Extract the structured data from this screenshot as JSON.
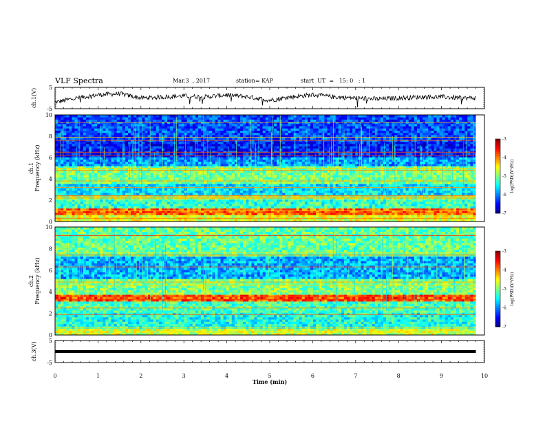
{
  "header": {
    "title": "VLF Spectra",
    "date": "Mar.3  , 2017",
    "station": "station= KAP",
    "start": "start  UT  =   15: 0   : 1"
  },
  "chart_data": [
    {
      "type": "line",
      "panel": "ch1-waveform",
      "ylabel": "ch.1(V)",
      "ylim": [
        -5,
        5
      ],
      "yticks": [
        "5",
        "-5"
      ],
      "xlim": [
        0,
        10
      ],
      "x": [
        0,
        0.5,
        1,
        1.5,
        2,
        2.5,
        3,
        3.5,
        4,
        4.5,
        5,
        5.5,
        6,
        6.5,
        7,
        7.5,
        8,
        8.5,
        9,
        9.5,
        9.8
      ],
      "y": [
        -2,
        0,
        1.5,
        2,
        0,
        0.5,
        1,
        0.5,
        1.5,
        0.5,
        -1,
        0.5,
        1.5,
        0.5,
        0,
        -0.5,
        0,
        0.5,
        0.5,
        0,
        0
      ],
      "color": "#000000"
    },
    {
      "type": "heatmap",
      "panel": "ch1-spectrogram",
      "ylabel": "ch.1\nFrequency (kHz)",
      "ylabel_lines": [
        "ch.1",
        "Frequency (kHz)"
      ],
      "ylim": [
        0,
        10
      ],
      "yticks": [
        "0",
        "2",
        "4",
        "6",
        "8",
        "10"
      ],
      "xlim": [
        0,
        9.8
      ],
      "colorbar": {
        "label": "log(PSD)(V²/Hz)",
        "range": [
          -7,
          -3
        ],
        "ticks": [
          "-3",
          "-4",
          "-5",
          "-6",
          "-7"
        ],
        "colormap": "jet"
      },
      "bands": [
        {
          "f_from": 0,
          "f_to": 0.6,
          "level": -4.6
        },
        {
          "f_from": 0.6,
          "f_to": 1.2,
          "level": -3.9
        },
        {
          "f_from": 1.2,
          "f_to": 2.0,
          "level": -5.3
        },
        {
          "f_from": 2.0,
          "f_to": 2.6,
          "level": -4.8
        },
        {
          "f_from": 2.6,
          "f_to": 3.6,
          "level": -5.6
        },
        {
          "f_from": 3.6,
          "f_to": 5.2,
          "level": -5.0
        },
        {
          "f_from": 5.2,
          "f_to": 6.0,
          "level": -5.9
        },
        {
          "f_from": 6.0,
          "f_to": 7.6,
          "level": -6.4
        },
        {
          "f_from": 7.6,
          "f_to": 10,
          "level": -6.2
        }
      ],
      "lines_khz": [
        0.3,
        0.8,
        1.0,
        2.2,
        2.4,
        3.2,
        3.8,
        4.8,
        5.0,
        6.2,
        6.5,
        7.6,
        7.9,
        9.3
      ]
    },
    {
      "type": "heatmap",
      "panel": "ch2-spectrogram",
      "ylabel": "ch.2\nFrequency (kHz)",
      "ylabel_lines": [
        "ch.2",
        "Frequency (kHz)"
      ],
      "ylim": [
        0,
        10
      ],
      "yticks": [
        "0",
        "2",
        "4",
        "6",
        "8",
        "10"
      ],
      "xlim": [
        0,
        9.8
      ],
      "colorbar": {
        "label": "log(PSD)(V²/Hz)",
        "range": [
          -7,
          -3
        ],
        "ticks": [
          "-3",
          "-4",
          "-5",
          "-6",
          "-7"
        ],
        "colormap": "jet"
      },
      "bands": [
        {
          "f_from": 0,
          "f_to": 0.6,
          "level": -4.7
        },
        {
          "f_from": 0.6,
          "f_to": 2.0,
          "level": -5.4
        },
        {
          "f_from": 2.0,
          "f_to": 3.2,
          "level": -5.2
        },
        {
          "f_from": 3.2,
          "f_to": 3.8,
          "level": -3.8
        },
        {
          "f_from": 3.8,
          "f_to": 5.2,
          "level": -5.0
        },
        {
          "f_from": 5.2,
          "f_to": 7.2,
          "level": -5.8
        },
        {
          "f_from": 7.2,
          "f_to": 10,
          "level": -5.1
        }
      ],
      "lines_khz": [
        0.3,
        0.7,
        1.9,
        2.5,
        3.3,
        3.6,
        4.6,
        4.9,
        6.3,
        7.4,
        7.6,
        9.2
      ]
    },
    {
      "type": "line",
      "panel": "ch3-waveform",
      "ylabel": "ch.3(V)",
      "ylim": [
        -5,
        5
      ],
      "yticks": [
        "5",
        "-5"
      ],
      "x": [
        0,
        9.8
      ],
      "y": [
        0,
        0
      ],
      "color": "#000000"
    }
  ],
  "xaxis": {
    "label": "Time  (min)",
    "range": [
      0,
      10
    ],
    "ticks": [
      "0",
      "1",
      "2",
      "3",
      "4",
      "5",
      "6",
      "7",
      "8",
      "9",
      "10"
    ]
  }
}
